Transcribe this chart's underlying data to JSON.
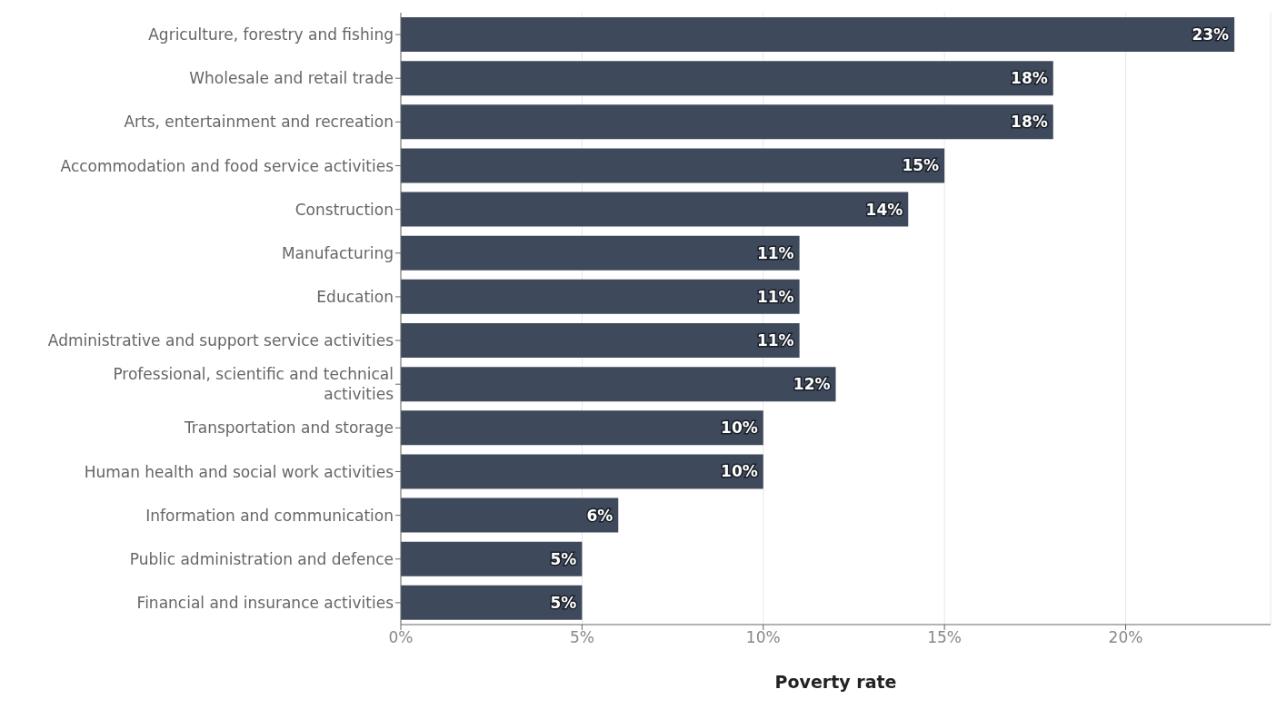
{
  "chart_data": {
    "type": "bar",
    "orientation": "horizontal",
    "xlabel": "Poverty rate",
    "categories": [
      "Agriculture, forestry and fishing",
      "Wholesale and retail trade",
      "Arts, entertainment and recreation",
      "Accommodation and food service activities",
      "Construction",
      "Manufacturing",
      "Education",
      "Administrative and support service activities",
      "Professional, scientific and technical activities",
      "Transportation and storage",
      "Human health and social work activities",
      "Information and communication",
      "Public administration and defence",
      "Financial and insurance activities"
    ],
    "values": [
      23,
      18,
      18,
      15,
      14,
      11,
      11,
      11,
      12,
      10,
      10,
      6,
      5,
      5
    ],
    "value_labels": [
      "23%",
      "18%",
      "18%",
      "15%",
      "14%",
      "11%",
      "11%",
      "11%",
      "12%",
      "10%",
      "10%",
      "6%",
      "5%",
      "5%"
    ],
    "color": "#3e4a5b",
    "xlim": [
      0,
      24
    ],
    "xticks": [
      {
        "value": 0,
        "label": "0%"
      },
      {
        "value": 5,
        "label": "5%"
      },
      {
        "value": 10,
        "label": "10%"
      },
      {
        "value": 15,
        "label": "15%"
      },
      {
        "value": 20,
        "label": "20%"
      }
    ],
    "grid": "x"
  }
}
